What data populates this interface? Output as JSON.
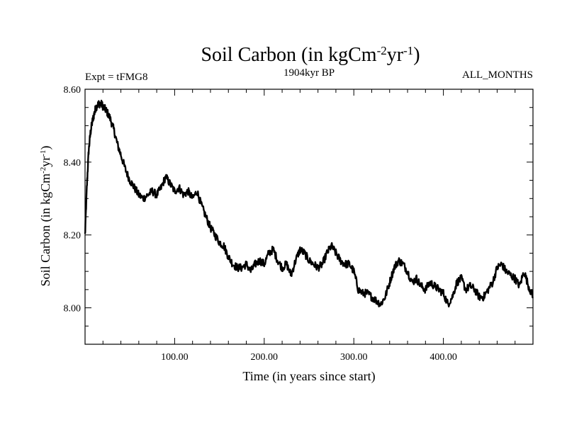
{
  "chart_data": {
    "type": "line",
    "title": "Soil Carbon (in kgCm-2yr-1)",
    "title_parts": {
      "base": "Soil Carbon (in kgCm",
      "exp1": "-2",
      "mid": "yr",
      "exp2": "-1",
      "end": ")"
    },
    "subtitle": "1904kyr BP",
    "left_label": "Expt = tFMG8",
    "right_label": "ALL_MONTHS",
    "xlabel": "Time (in years since start)",
    "ylabel": "Soil Carbon (in kgCm-2yr-1)",
    "ylabel_parts": {
      "base": "Soil Carbon (in kgCm",
      "exp1": "-2",
      "mid": "yr",
      "exp2": "-1",
      "end": ")"
    },
    "xlim": [
      0,
      500
    ],
    "ylim": [
      7.9,
      8.6
    ],
    "xticks": [
      100,
      200,
      300,
      400
    ],
    "xtick_labels": [
      "100.00",
      "200.00",
      "300.00",
      "400.00"
    ],
    "yticks": [
      8.0,
      8.2,
      8.4,
      8.6
    ],
    "ytick_labels": [
      "8.00",
      "8.20",
      "8.40",
      "8.60"
    ],
    "grid": false,
    "series": [
      {
        "x": [
          0,
          2,
          4,
          6,
          8,
          10,
          12,
          15,
          18,
          21,
          24,
          28,
          32,
          36,
          40,
          45,
          50,
          55,
          60,
          65,
          70,
          75,
          80,
          85,
          90,
          95,
          100,
          105,
          110,
          115,
          120,
          125,
          130,
          135,
          140,
          145,
          150,
          155,
          160,
          165,
          170,
          175,
          180,
          185,
          190,
          195,
          200,
          205,
          210,
          215,
          220,
          225,
          230,
          235,
          240,
          245,
          250,
          255,
          260,
          265,
          270,
          275,
          280,
          285,
          290,
          295,
          300,
          305,
          310,
          315,
          320,
          325,
          330,
          335,
          340,
          345,
          350,
          355,
          360,
          365,
          370,
          375,
          380,
          385,
          390,
          395,
          400,
          405,
          410,
          415,
          420,
          425,
          430,
          435,
          440,
          445,
          450,
          455,
          460,
          465,
          470,
          475,
          480,
          485,
          490,
          495,
          500
        ],
        "values": [
          8.2,
          8.33,
          8.43,
          8.48,
          8.51,
          8.53,
          8.55,
          8.56,
          8.56,
          8.55,
          8.54,
          8.52,
          8.49,
          8.45,
          8.42,
          8.38,
          8.35,
          8.33,
          8.31,
          8.3,
          8.31,
          8.32,
          8.31,
          8.33,
          8.36,
          8.34,
          8.32,
          8.33,
          8.31,
          8.32,
          8.3,
          8.32,
          8.28,
          8.25,
          8.22,
          8.2,
          8.18,
          8.17,
          8.14,
          8.12,
          8.11,
          8.11,
          8.12,
          8.1,
          8.12,
          8.13,
          8.12,
          8.15,
          8.16,
          8.13,
          8.11,
          8.12,
          8.09,
          8.13,
          8.16,
          8.15,
          8.13,
          8.12,
          8.11,
          8.12,
          8.15,
          8.17,
          8.15,
          8.13,
          8.12,
          8.12,
          8.1,
          8.05,
          8.04,
          8.04,
          8.03,
          8.02,
          8.01,
          8.03,
          8.07,
          8.11,
          8.13,
          8.12,
          8.1,
          8.07,
          8.08,
          8.06,
          8.05,
          8.07,
          8.06,
          8.05,
          8.04,
          8.01,
          8.03,
          8.07,
          8.08,
          8.05,
          8.06,
          8.05,
          8.03,
          8.03,
          8.05,
          8.07,
          8.11,
          8.12,
          8.1,
          8.09,
          8.08,
          8.06,
          8.1,
          8.06,
          8.03
        ]
      }
    ]
  }
}
